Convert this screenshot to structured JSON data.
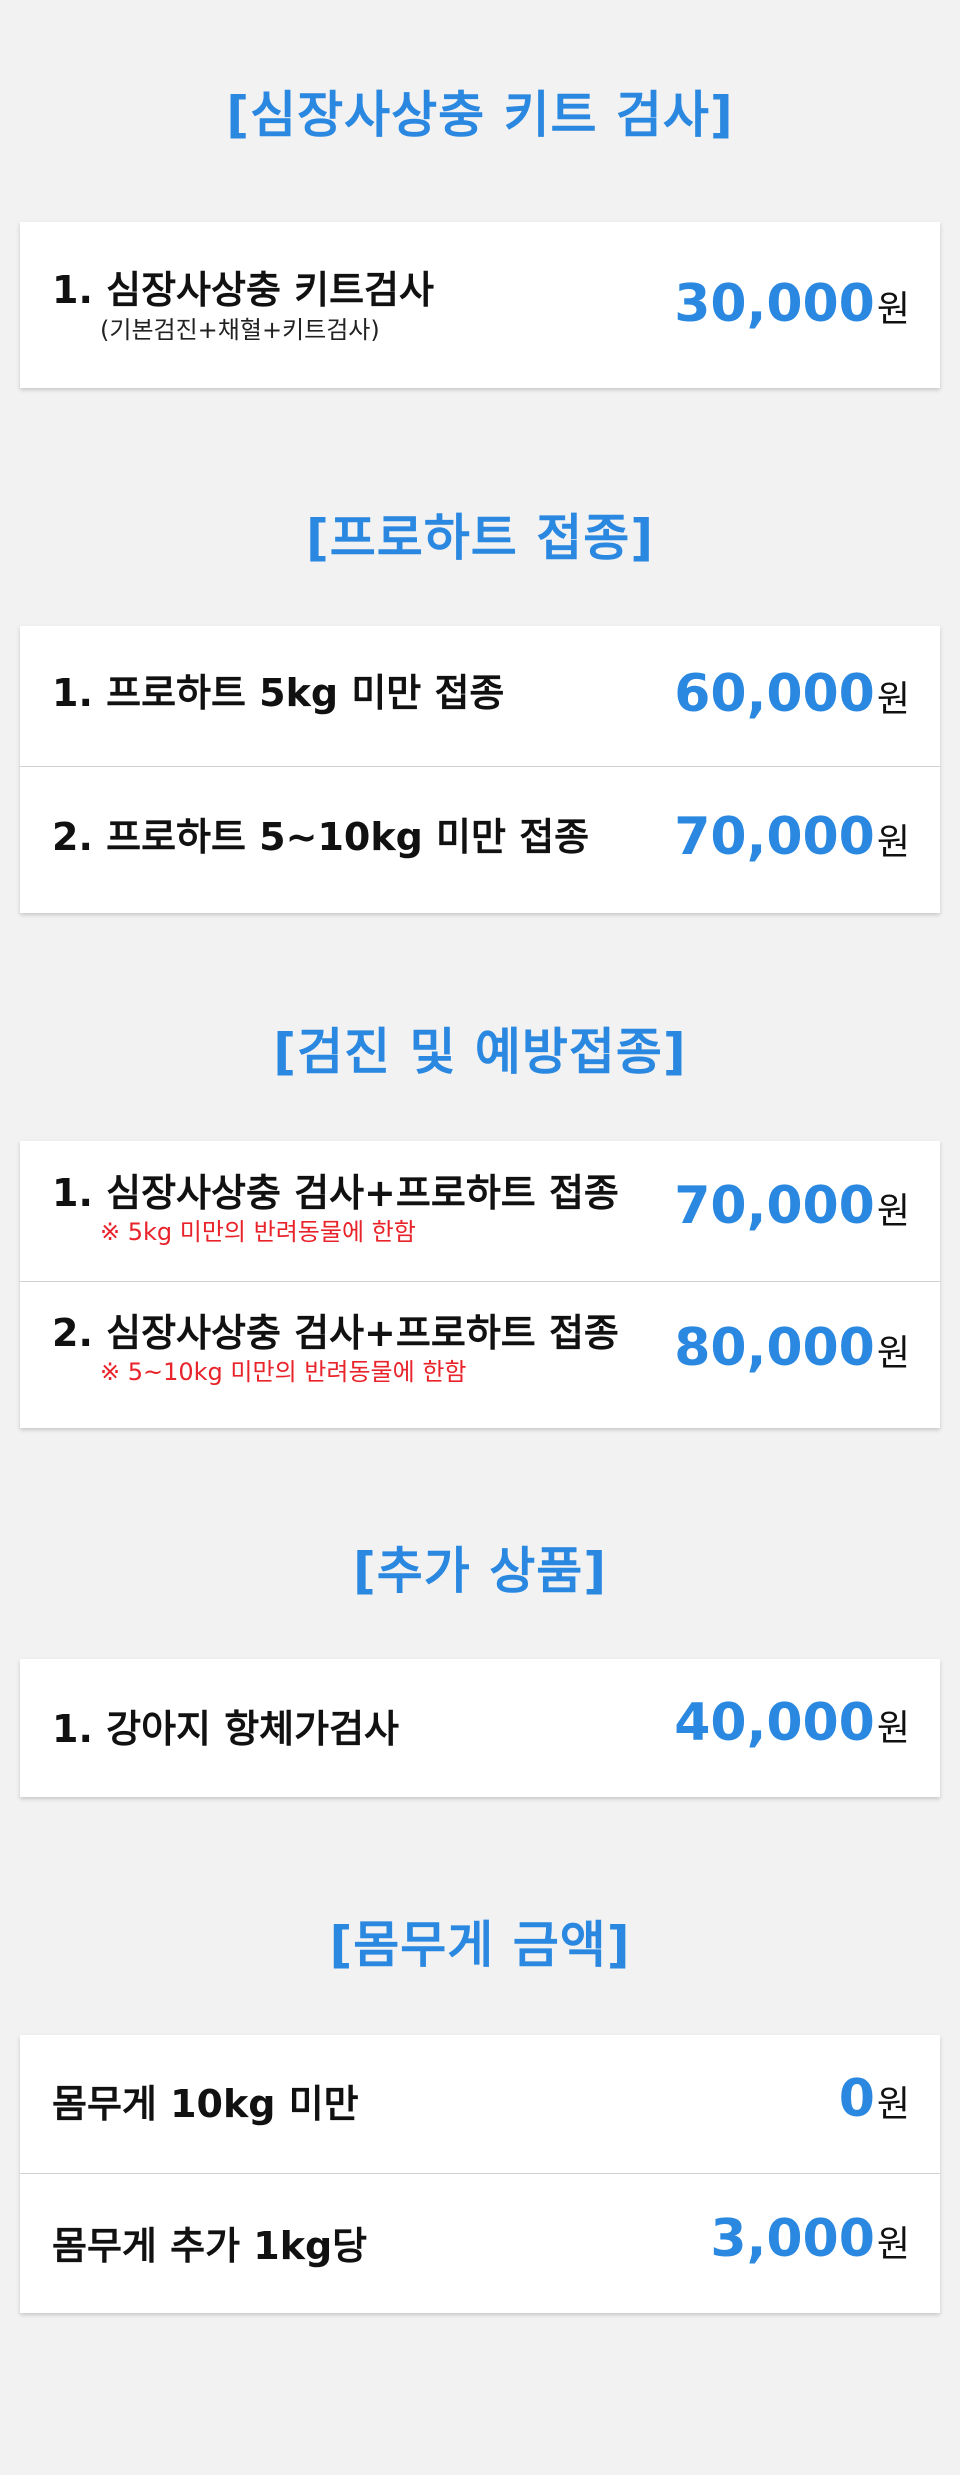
{
  "sections": [
    {
      "title": "[심장사상충 키트 검사]",
      "items": [
        {
          "name": "1. 심장사상충 키트검사",
          "sub": "(기본검진+채혈+키트검사)",
          "price": "30,000",
          "unit": "원"
        }
      ]
    },
    {
      "title": "[프로하트 접종]",
      "items": [
        {
          "name": "1. 프로하트 5kg 미만 접종",
          "price": "60,000",
          "unit": "원"
        },
        {
          "name": "2. 프로하트 5~10kg 미만 접종",
          "price": "70,000",
          "unit": "원"
        }
      ]
    },
    {
      "title": "[검진 및 예방접종]",
      "items": [
        {
          "name": "1. 심장사상충 검사+프로하트 접종",
          "note": "※ 5kg 미만의 반려동물에 한함",
          "price": "70,000",
          "unit": "원"
        },
        {
          "name": "2. 심장사상충 검사+프로하트 접종",
          "note": "※ 5~10kg 미만의 반려동물에 한함",
          "price": "80,000",
          "unit": "원"
        }
      ]
    },
    {
      "title": "[추가 상품]",
      "items": [
        {
          "name": "1. 강아지 항체가검사",
          "price": "40,000",
          "unit": "원"
        }
      ]
    },
    {
      "title": "[몸무게 금액]",
      "items": [
        {
          "name": "몸무게 10kg 미만",
          "price": "0",
          "unit": "원"
        },
        {
          "name": "몸무게 추가 1kg당",
          "price": "3,000",
          "unit": "원"
        }
      ]
    }
  ],
  "colors": {
    "accent": "#2b88e0",
    "note_red": "#e8232a",
    "background": "#f2f2f2"
  }
}
